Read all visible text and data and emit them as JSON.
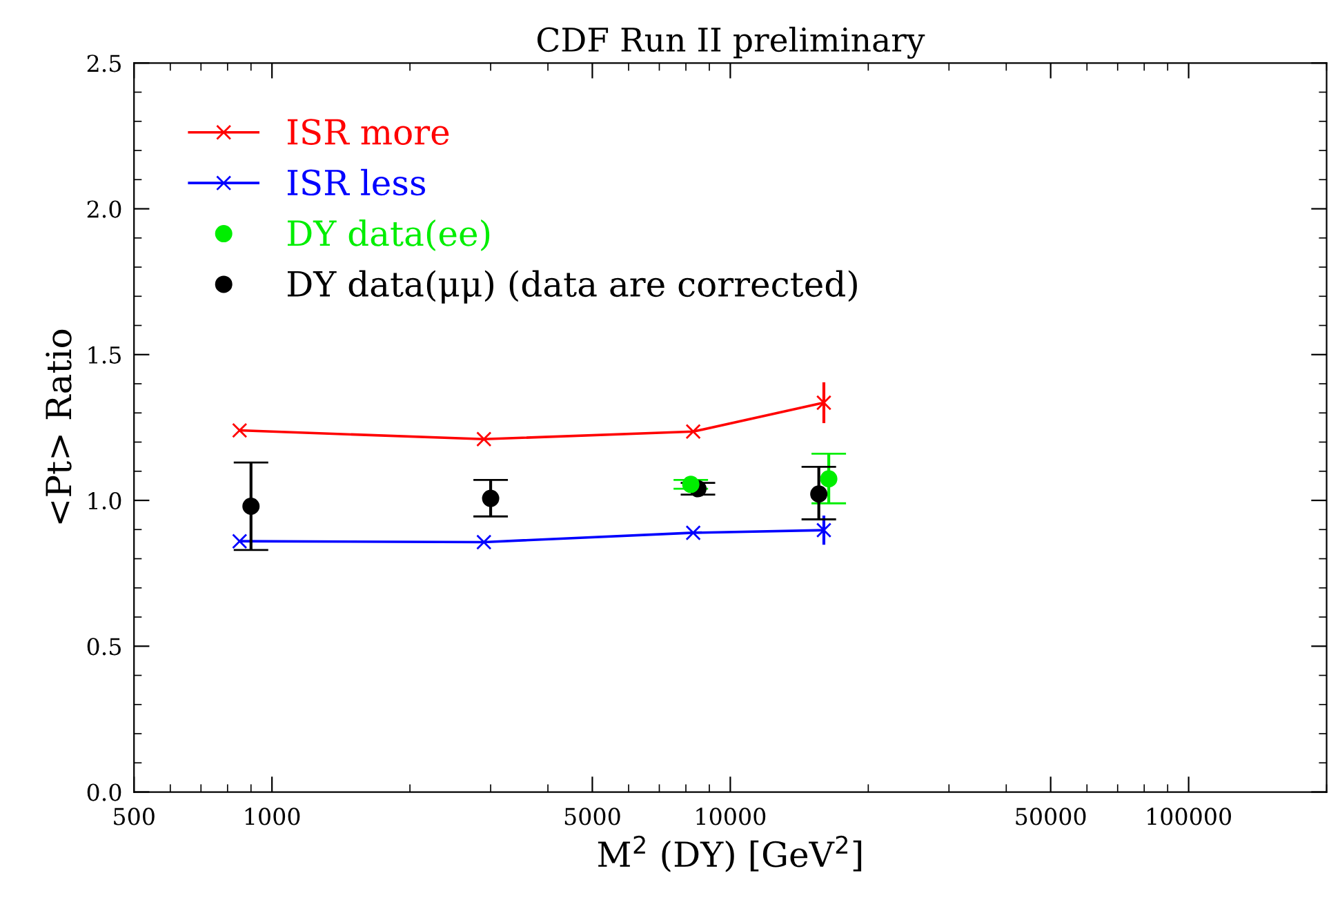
{
  "chart_data": {
    "type": "line",
    "title": "CDF Run II preliminary",
    "xlabel": "M$^{2}$ (DY) [GeV$^{2}$]",
    "ylabel": "<Pt> Ratio",
    "log": "x",
    "xlim": [
      500,
      200000
    ],
    "xticks": [
      500,
      1000,
      5000,
      10000,
      50000,
      100000
    ],
    "ylim": [
      0,
      2.5
    ],
    "yticks": [
      {
        "value": 0,
        "label": "0.0"
      },
      0.5,
      {
        "value": 1,
        "label": "1.0"
      },
      1.5,
      {
        "value": 2,
        "label": "2.0"
      },
      2.5
    ],
    "grid": false,
    "legend": "top left",
    "series": [
      {
        "name": "ISR more",
        "marker": "cross",
        "color": "#ff0000",
        "x": [
          850,
          2900,
          8300,
          16000
        ],
        "values": [
          1.24,
          1.21,
          1.236,
          1.335
        ],
        "errors": [
          null,
          null,
          null,
          0.07
        ]
      },
      {
        "name": "ISR less",
        "marker": "cross",
        "color": "#0000ff",
        "x": [
          850,
          2900,
          8300,
          16000
        ],
        "values": [
          0.86,
          0.857,
          0.889,
          0.898
        ],
        "errors": [
          null,
          null,
          null,
          0.05
        ]
      },
      {
        "name": "DY data(ee)",
        "type": "scatter",
        "marker": "circle",
        "color": "#00ee00",
        "x": [
          8200,
          16400
        ],
        "values": [
          1.055,
          1.074
        ],
        "errors": [
          0.015,
          [
            0.99,
            1.16
          ]
        ]
      },
      {
        "name": "DY data(μμ) (data are corrected)",
        "type": "scatter",
        "marker": "circle",
        "color": "#000000",
        "x": [
          900,
          3000,
          8500,
          15600
        ],
        "values": [
          0.98,
          1.007,
          1.04,
          1.022
        ],
        "errors": [
          [
            0.83,
            1.13
          ],
          [
            0.945,
            1.07
          ],
          0.02,
          [
            0.935,
            1.115
          ]
        ]
      }
    ]
  }
}
